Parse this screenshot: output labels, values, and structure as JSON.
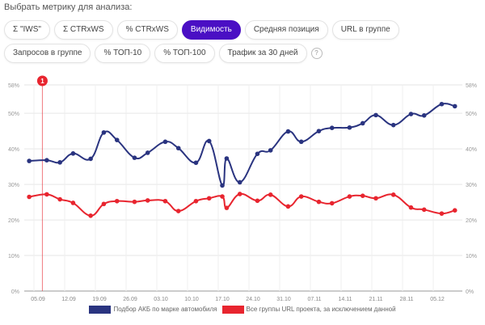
{
  "title": "Выбрать метрику для анализа:",
  "metrics": [
    {
      "label": "Σ \"IWS\"",
      "active": false
    },
    {
      "label": "Σ CTRxWS",
      "active": false
    },
    {
      "label": "% CTRxWS",
      "active": false
    },
    {
      "label": "Видимость",
      "active": true
    },
    {
      "label": "Средняя позиция",
      "active": false
    },
    {
      "label": "URL в группе",
      "active": false
    },
    {
      "label": "Запросов в группе",
      "active": false
    },
    {
      "label": "% ТОП-10",
      "active": false
    },
    {
      "label": "% ТОП-100",
      "active": false
    },
    {
      "label": "Трафик за 30 дней",
      "active": false
    }
  ],
  "help_label": "?",
  "chart_data": {
    "type": "line",
    "ylim": [
      0,
      58
    ],
    "yticks": [
      "0%",
      "10%",
      "20%",
      "30%",
      "40%",
      "50%",
      "58%"
    ],
    "ytick_values": [
      0,
      10,
      20,
      30,
      40,
      50,
      58
    ],
    "xticks": [
      "05.09",
      "12.09",
      "19.09",
      "26.09",
      "03.10",
      "10.10",
      "17.10",
      "24.10",
      "31.10",
      "07.11",
      "14.11",
      "21.11",
      "28.11",
      "05.12"
    ],
    "x": [
      "03.09",
      "07.09",
      "10.09",
      "13.09",
      "17.09",
      "20.09",
      "23.09",
      "27.09",
      "30.09",
      "04.10",
      "07.10",
      "11.10",
      "14.10",
      "17.10",
      "18.10",
      "21.10",
      "25.10",
      "28.10",
      "01.11",
      "04.11",
      "08.11",
      "11.11",
      "15.11",
      "18.11",
      "21.11",
      "25.11",
      "29.11",
      "02.12",
      "06.12",
      "09.12"
    ],
    "series": [
      {
        "name": "Подбор АКБ по марке автомобиля",
        "color": "#2a3480",
        "values": [
          36.6,
          36.8,
          36.2,
          38.7,
          37.2,
          44.6,
          42.5,
          37.5,
          38.9,
          42,
          40.2,
          36.1,
          42.2,
          29.7,
          37.3,
          30.6,
          38.6,
          39.6,
          44.9,
          42,
          45,
          45.9,
          46,
          47.2,
          49.5,
          46.7,
          49.8,
          49.4,
          52.6,
          52
        ]
      },
      {
        "name": "Все группы URL проекта, за исключением данной",
        "color": "#e8252f",
        "values": [
          26.5,
          27.2,
          25.8,
          24.8,
          21.2,
          24.5,
          25.3,
          25.1,
          25.5,
          25.3,
          22.5,
          25.3,
          26.1,
          26.6,
          23.4,
          27.3,
          25.4,
          27.1,
          23.8,
          26.6,
          25.1,
          24.7,
          26.6,
          26.8,
          26.1,
          27.1,
          23.5,
          22.9,
          21.8,
          22.7
        ]
      }
    ],
    "annotations": [
      {
        "label": "1",
        "date": "06.09",
        "color": "#e8252f"
      }
    ],
    "grid": true,
    "legend": "bottom"
  }
}
